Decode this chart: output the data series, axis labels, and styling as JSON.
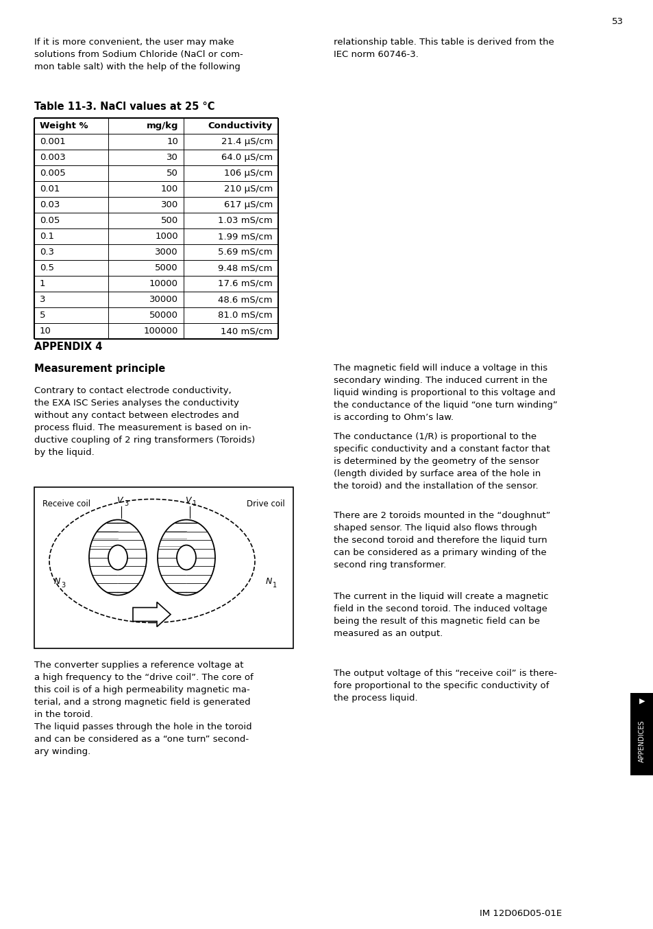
{
  "page_number": "53",
  "bg_color": "#ffffff",
  "intro_text_left": "If it is more convenient, the user may make\nsolutions from Sodium Chloride (NaCl or com-\nmon table salt) with the help of the following",
  "intro_text_right": "relationship table. This table is derived from the\nIEC norm 60746-3.",
  "table_title": "Table 11-3. NaCl values at 25 °C",
  "table_headers": [
    "Weight %",
    "mg/kg",
    "Conductivity"
  ],
  "table_rows": [
    [
      "0.001",
      "10",
      "21.4 μS/cm"
    ],
    [
      "0.003",
      "30",
      "64.0 μS/cm"
    ],
    [
      "0.005",
      "50",
      "106 μS/cm"
    ],
    [
      "0.01",
      "100",
      "210 μS/cm"
    ],
    [
      "0.03",
      "300",
      "617 μS/cm"
    ],
    [
      "0.05",
      "500",
      "1.03 mS/cm"
    ],
    [
      "0.1",
      "1000",
      "1.99 mS/cm"
    ],
    [
      "0.3",
      "3000",
      "5.69 mS/cm"
    ],
    [
      "0.5",
      "5000",
      "9.48 mS/cm"
    ],
    [
      "1",
      "10000",
      "17.6 mS/cm"
    ],
    [
      "3",
      "30000",
      "48.6 mS/cm"
    ],
    [
      "5",
      "50000",
      "81.0 mS/cm"
    ],
    [
      "10",
      "100000",
      "140 mS/cm"
    ]
  ],
  "appendix_heading": "APPENDIX 4",
  "section_heading": "Measurement principle",
  "left_col_para1": "Contrary to contact electrode conductivity,\nthe EXA ISC Series analyses the conductivity\nwithout any contact between electrodes and\nprocess fluid. The measurement is based on in-\nductive coupling of 2 ring transformers (Toroids)\nby the liquid.",
  "left_col_para2": "The converter supplies a reference voltage at\na high frequency to the “drive coil”. The core of\nthis coil is of a high permeability magnetic ma-\nterial, and a strong magnetic field is generated\nin the toroid.\nThe liquid passes through the hole in the toroid\nand can be considered as a “one turn” second-\nary winding.",
  "right_col_para1": "The magnetic field will induce a voltage in this\nsecondary winding. The induced current in the\nliquid winding is proportional to this voltage and\nthe conductance of the liquid “one turn winding”\nis according to Ohm’s law.",
  "right_col_para2": "The conductance (1/R) is proportional to the\nspecific conductivity and a constant factor that\nis determined by the geometry of the sensor\n(length divided by surface area of the hole in\nthe toroid) and the installation of the sensor.",
  "right_col_para3": "There are 2 toroids mounted in the “doughnut”\nshaped sensor. The liquid also flows through\nthe second toroid and therefore the liquid turn\ncan be considered as a primary winding of the\nsecond ring transformer.",
  "right_col_para4": "The current in the liquid will create a magnetic\nfield in the second toroid. The induced voltage\nbeing the result of this magnetic field can be\nmeasured as an output.",
  "right_col_para5": "The output voltage of this “receive coil” is there-\nfore proportional to the specific conductivity of\nthe process liquid.",
  "footer_text": "IM 12D06D05-01E",
  "sidebar_text": "APPENDICES"
}
